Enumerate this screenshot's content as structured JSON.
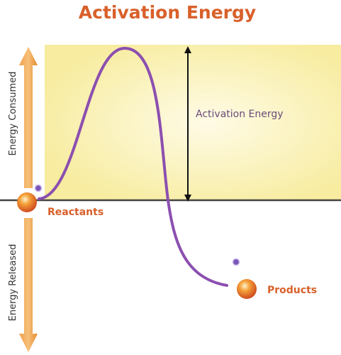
{
  "title": "Activation Energy",
  "axis": {
    "consumed": "Energy Consumed",
    "released": "Energy Released"
  },
  "annotation": "Activation Energy",
  "labels": {
    "reactants": "Reactants",
    "products": "Products"
  }
}
